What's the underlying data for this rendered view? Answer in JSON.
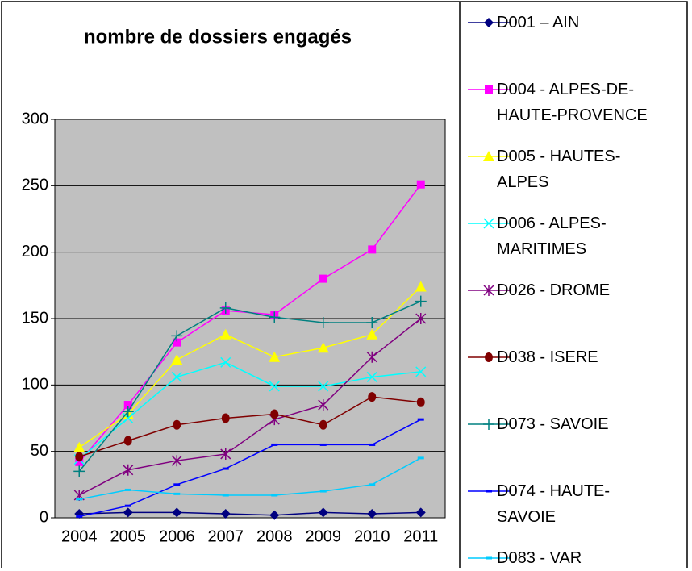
{
  "chart_data": {
    "type": "line",
    "title": "nombre de dossiers engagés",
    "categories": [
      "2004",
      "2005",
      "2006",
      "2007",
      "2008",
      "2009",
      "2010",
      "2011"
    ],
    "ylim": [
      0,
      300
    ],
    "yticks": [
      0,
      50,
      100,
      150,
      200,
      250,
      300
    ],
    "grid": true,
    "plot_background": "#c0c0c0",
    "legend": "right",
    "series": [
      {
        "name": "D001 – AIN",
        "color": "#000080",
        "marker": "diamond",
        "values": [
          3,
          4,
          4,
          3,
          2,
          4,
          3,
          4
        ]
      },
      {
        "name": "D004 - ALPES-DE-HAUTE-PROVENCE",
        "color": "#ff00ff",
        "marker": "square",
        "values": [
          42,
          85,
          132,
          156,
          153,
          180,
          202,
          251
        ]
      },
      {
        "name": "D005 - HAUTES-ALPES",
        "color": "#ffff00",
        "marker": "triangle",
        "values": [
          53,
          78,
          119,
          138,
          121,
          128,
          138,
          174
        ]
      },
      {
        "name": "D006 - ALPES-MARITIMES",
        "color": "#00ffff",
        "marker": "x",
        "values": [
          44,
          75,
          106,
          117,
          99,
          99,
          106,
          110
        ]
      },
      {
        "name": "D026 - DROME",
        "color": "#800080",
        "marker": "star",
        "values": [
          17,
          36,
          43,
          48,
          74,
          85,
          121,
          150
        ]
      },
      {
        "name": "D038 - ISERE",
        "color": "#800000",
        "marker": "circle",
        "values": [
          46,
          58,
          70,
          75,
          78,
          70,
          91,
          87
        ]
      },
      {
        "name": "D073 - SAVOIE",
        "color": "#008080",
        "marker": "plus",
        "values": [
          35,
          80,
          137,
          158,
          151,
          147,
          147,
          163
        ]
      },
      {
        "name": "D074 - HAUTE-SAVOIE",
        "color": "#0000ff",
        "marker": "dash",
        "values": [
          1,
          9,
          25,
          37,
          55,
          55,
          55,
          74
        ]
      },
      {
        "name": "D083 - VAR",
        "color": "#00ccff",
        "marker": "dash",
        "values": [
          14,
          21,
          18,
          17,
          17,
          20,
          25,
          45
        ]
      }
    ]
  }
}
